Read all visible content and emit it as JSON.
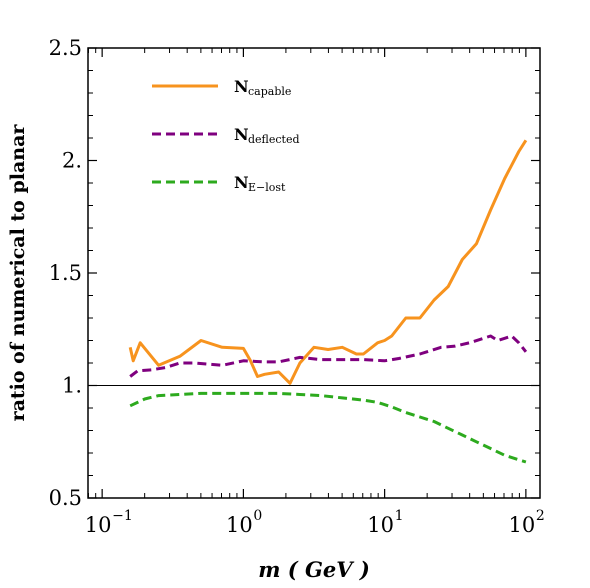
{
  "chart_data": {
    "type": "line",
    "xlabel": "m ( GeV )",
    "ylabel": "ratio of numerical to planar",
    "xscale": "log",
    "xlim": [
      0.0794,
      125.9
    ],
    "ylim": [
      0.5,
      2.5
    ],
    "x_ticks": [
      {
        "value": 0.1,
        "base": "10",
        "exp": "−1"
      },
      {
        "value": 1,
        "base": "10",
        "exp": "0"
      },
      {
        "value": 10,
        "base": "10",
        "exp": "1"
      },
      {
        "value": 100,
        "base": "10",
        "exp": "2"
      }
    ],
    "y_ticks": [
      {
        "value": 0.5,
        "label": "0.5"
      },
      {
        "value": 1.0,
        "label": "1."
      },
      {
        "value": 1.5,
        "label": "1.5"
      },
      {
        "value": 2.0,
        "label": "2."
      },
      {
        "value": 2.5,
        "label": "2.5"
      }
    ],
    "reference_line": 1.0,
    "legend_position": "top-left",
    "series": [
      {
        "name": "N",
        "name_sub": "capable",
        "color": "#F7931E",
        "dash": "solid",
        "x": [
          0.158,
          0.166,
          0.186,
          0.251,
          0.355,
          0.501,
          0.708,
          1.0,
          1.122,
          1.259,
          1.413,
          1.778,
          2.138,
          2.512,
          3.162,
          3.981,
          5.012,
          6.31,
          7.079,
          8.913,
          10.0,
          11.22,
          14.13,
          17.78,
          22.39,
          28.18,
          35.48,
          44.67,
          56.23,
          70.79,
          89.13,
          100.0
        ],
        "y": [
          1.17,
          1.11,
          1.19,
          1.09,
          1.13,
          1.2,
          1.17,
          1.165,
          1.11,
          1.04,
          1.05,
          1.06,
          1.01,
          1.1,
          1.17,
          1.16,
          1.17,
          1.14,
          1.14,
          1.19,
          1.2,
          1.22,
          1.3,
          1.3,
          1.38,
          1.44,
          1.56,
          1.63,
          1.78,
          1.92,
          2.04,
          2.09
        ]
      },
      {
        "name": "N",
        "name_sub": "deflected",
        "color": "#7F007F",
        "dash": "dashed",
        "x": [
          0.158,
          0.178,
          0.224,
          0.282,
          0.355,
          0.447,
          0.708,
          1.0,
          1.413,
          1.778,
          2.512,
          3.548,
          5.012,
          7.079,
          10.0,
          12.59,
          17.78,
          25.12,
          31.62,
          39.81,
          50.12,
          56.23,
          63.1,
          70.79,
          79.43,
          89.13,
          100.0
        ],
        "y": [
          1.04,
          1.065,
          1.07,
          1.08,
          1.1,
          1.1,
          1.09,
          1.11,
          1.105,
          1.105,
          1.125,
          1.115,
          1.115,
          1.115,
          1.11,
          1.12,
          1.14,
          1.17,
          1.175,
          1.19,
          1.21,
          1.22,
          1.2,
          1.21,
          1.22,
          1.19,
          1.15
        ]
      },
      {
        "name": "N",
        "name_sub": "E−lost",
        "color": "#2DAA1E",
        "dash": "dashed",
        "x": [
          0.158,
          0.2,
          0.251,
          0.355,
          0.501,
          0.708,
          1.0,
          1.413,
          1.778,
          2.512,
          3.548,
          5.012,
          7.079,
          8.913,
          11.22,
          14.13,
          17.78,
          22.39,
          28.18,
          35.48,
          44.67,
          56.23,
          70.79,
          89.13,
          100.0
        ],
        "y": [
          0.91,
          0.94,
          0.955,
          0.96,
          0.965,
          0.965,
          0.965,
          0.965,
          0.965,
          0.96,
          0.955,
          0.945,
          0.935,
          0.925,
          0.905,
          0.88,
          0.86,
          0.84,
          0.81,
          0.78,
          0.75,
          0.72,
          0.69,
          0.67,
          0.66
        ]
      }
    ]
  }
}
